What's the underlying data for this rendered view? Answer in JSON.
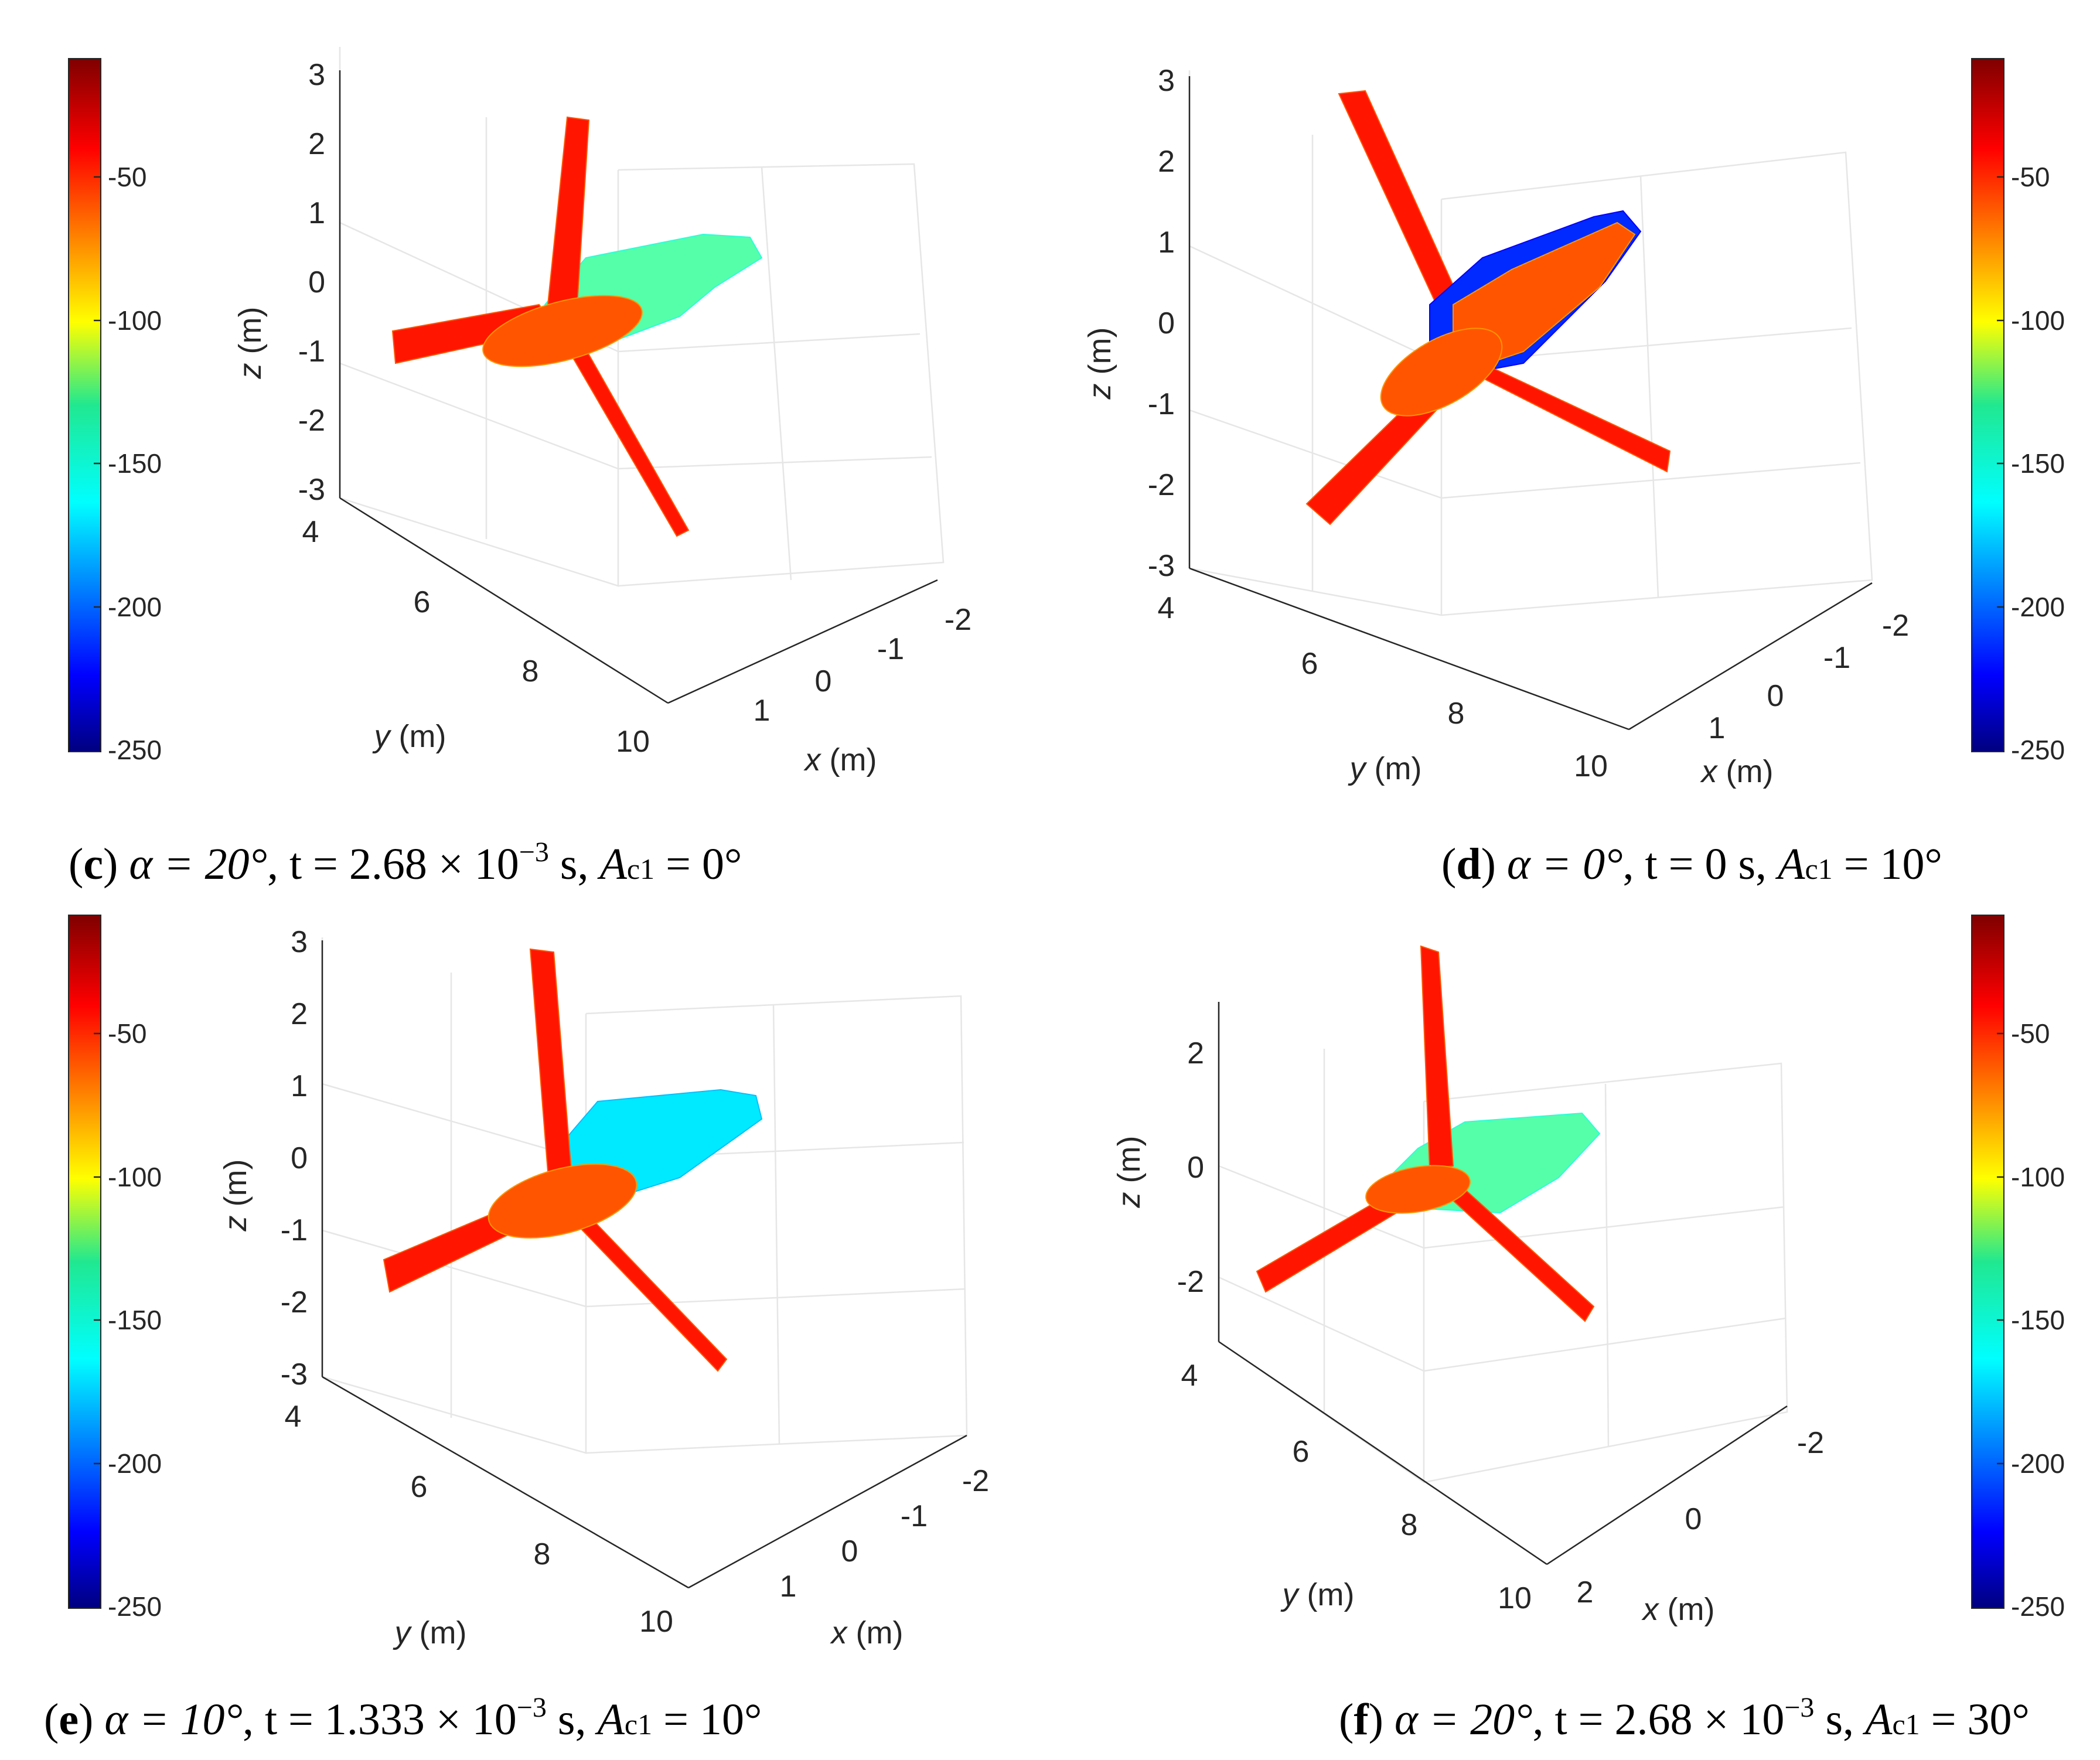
{
  "colorbar": {
    "min": -250,
    "max": -10,
    "ticks": [
      -50,
      -100,
      -150,
      -200,
      -250
    ],
    "colormap": "jet"
  },
  "chart_data": [
    {
      "type": "surface3d",
      "panel": "c",
      "caption": {
        "letter": "c",
        "alpha": "α = 20°",
        "t": "t = 2.68 × 10",
        "exp": "−3",
        "t_unit": " s",
        "ac_lead": "A",
        "ac_sub": "c1",
        "ac_val": " = 0°"
      },
      "xlabel": "x",
      "ylabel": "y",
      "zlabel": "z",
      "unit": "(m)",
      "zticks": [
        "3",
        "2",
        "1",
        "0",
        "-1",
        "-2",
        "-3"
      ],
      "yticks": [
        "4",
        "6",
        "8",
        "10"
      ],
      "xticks": [
        "-2",
        "-1",
        "0",
        "1"
      ],
      "blade_pressure": -45,
      "hub_pressure": -60,
      "nacelle_pressure": -140,
      "colorbar_side": "left"
    },
    {
      "type": "surface3d",
      "panel": "d",
      "caption": {
        "letter": "d",
        "alpha": "α = 0°",
        "t": "t = 0 s",
        "exp": "",
        "t_unit": "",
        "ac_lead": "A",
        "ac_sub": "c1",
        "ac_val": " = 10°"
      },
      "xlabel": "x",
      "ylabel": "y",
      "zlabel": "z",
      "unit": "(m)",
      "zticks": [
        "3",
        "2",
        "1",
        "0",
        "-1",
        "-2",
        "-3"
      ],
      "yticks": [
        "4",
        "6",
        "8",
        "10"
      ],
      "xticks": [
        "-2",
        "-1",
        "0",
        "1"
      ],
      "blade_pressure": -45,
      "hub_pressure": -60,
      "nacelle_pressure": -210,
      "colorbar_side": "right"
    },
    {
      "type": "surface3d",
      "panel": "e",
      "caption": {
        "letter": "e",
        "alpha": "α = 10°",
        "t": "t = 1.333 × 10",
        "exp": "−3",
        "t_unit": " s",
        "ac_lead": "A",
        "ac_sub": "c1",
        "ac_val": " = 10°"
      },
      "xlabel": "x",
      "ylabel": "y",
      "zlabel": "z",
      "unit": "(m)",
      "zticks": [
        "3",
        "2",
        "1",
        "0",
        "-1",
        "-2",
        "-3"
      ],
      "yticks": [
        "4",
        "6",
        "8",
        "10"
      ],
      "xticks": [
        "-2",
        "-1",
        "0",
        "1"
      ],
      "blade_pressure": -45,
      "hub_pressure": -60,
      "nacelle_pressure": -165,
      "colorbar_side": "left"
    },
    {
      "type": "surface3d",
      "panel": "f",
      "caption": {
        "letter": "f",
        "alpha": "α = 20°",
        "t": "t = 2.68 × 10",
        "exp": "−3",
        "t_unit": " s",
        "ac_lead": "A",
        "ac_sub": "c1",
        "ac_val": " = 30°"
      },
      "xlabel": "x",
      "ylabel": "y",
      "zlabel": "z",
      "unit": "(m)",
      "zticks": [
        "2",
        "0",
        "-2"
      ],
      "yticks": [
        "4",
        "6",
        "8",
        "10"
      ],
      "xticks": [
        "-2",
        "0",
        "2"
      ],
      "blade_pressure": -45,
      "hub_pressure": -60,
      "nacelle_pressure": -140,
      "colorbar_side": "right"
    }
  ]
}
